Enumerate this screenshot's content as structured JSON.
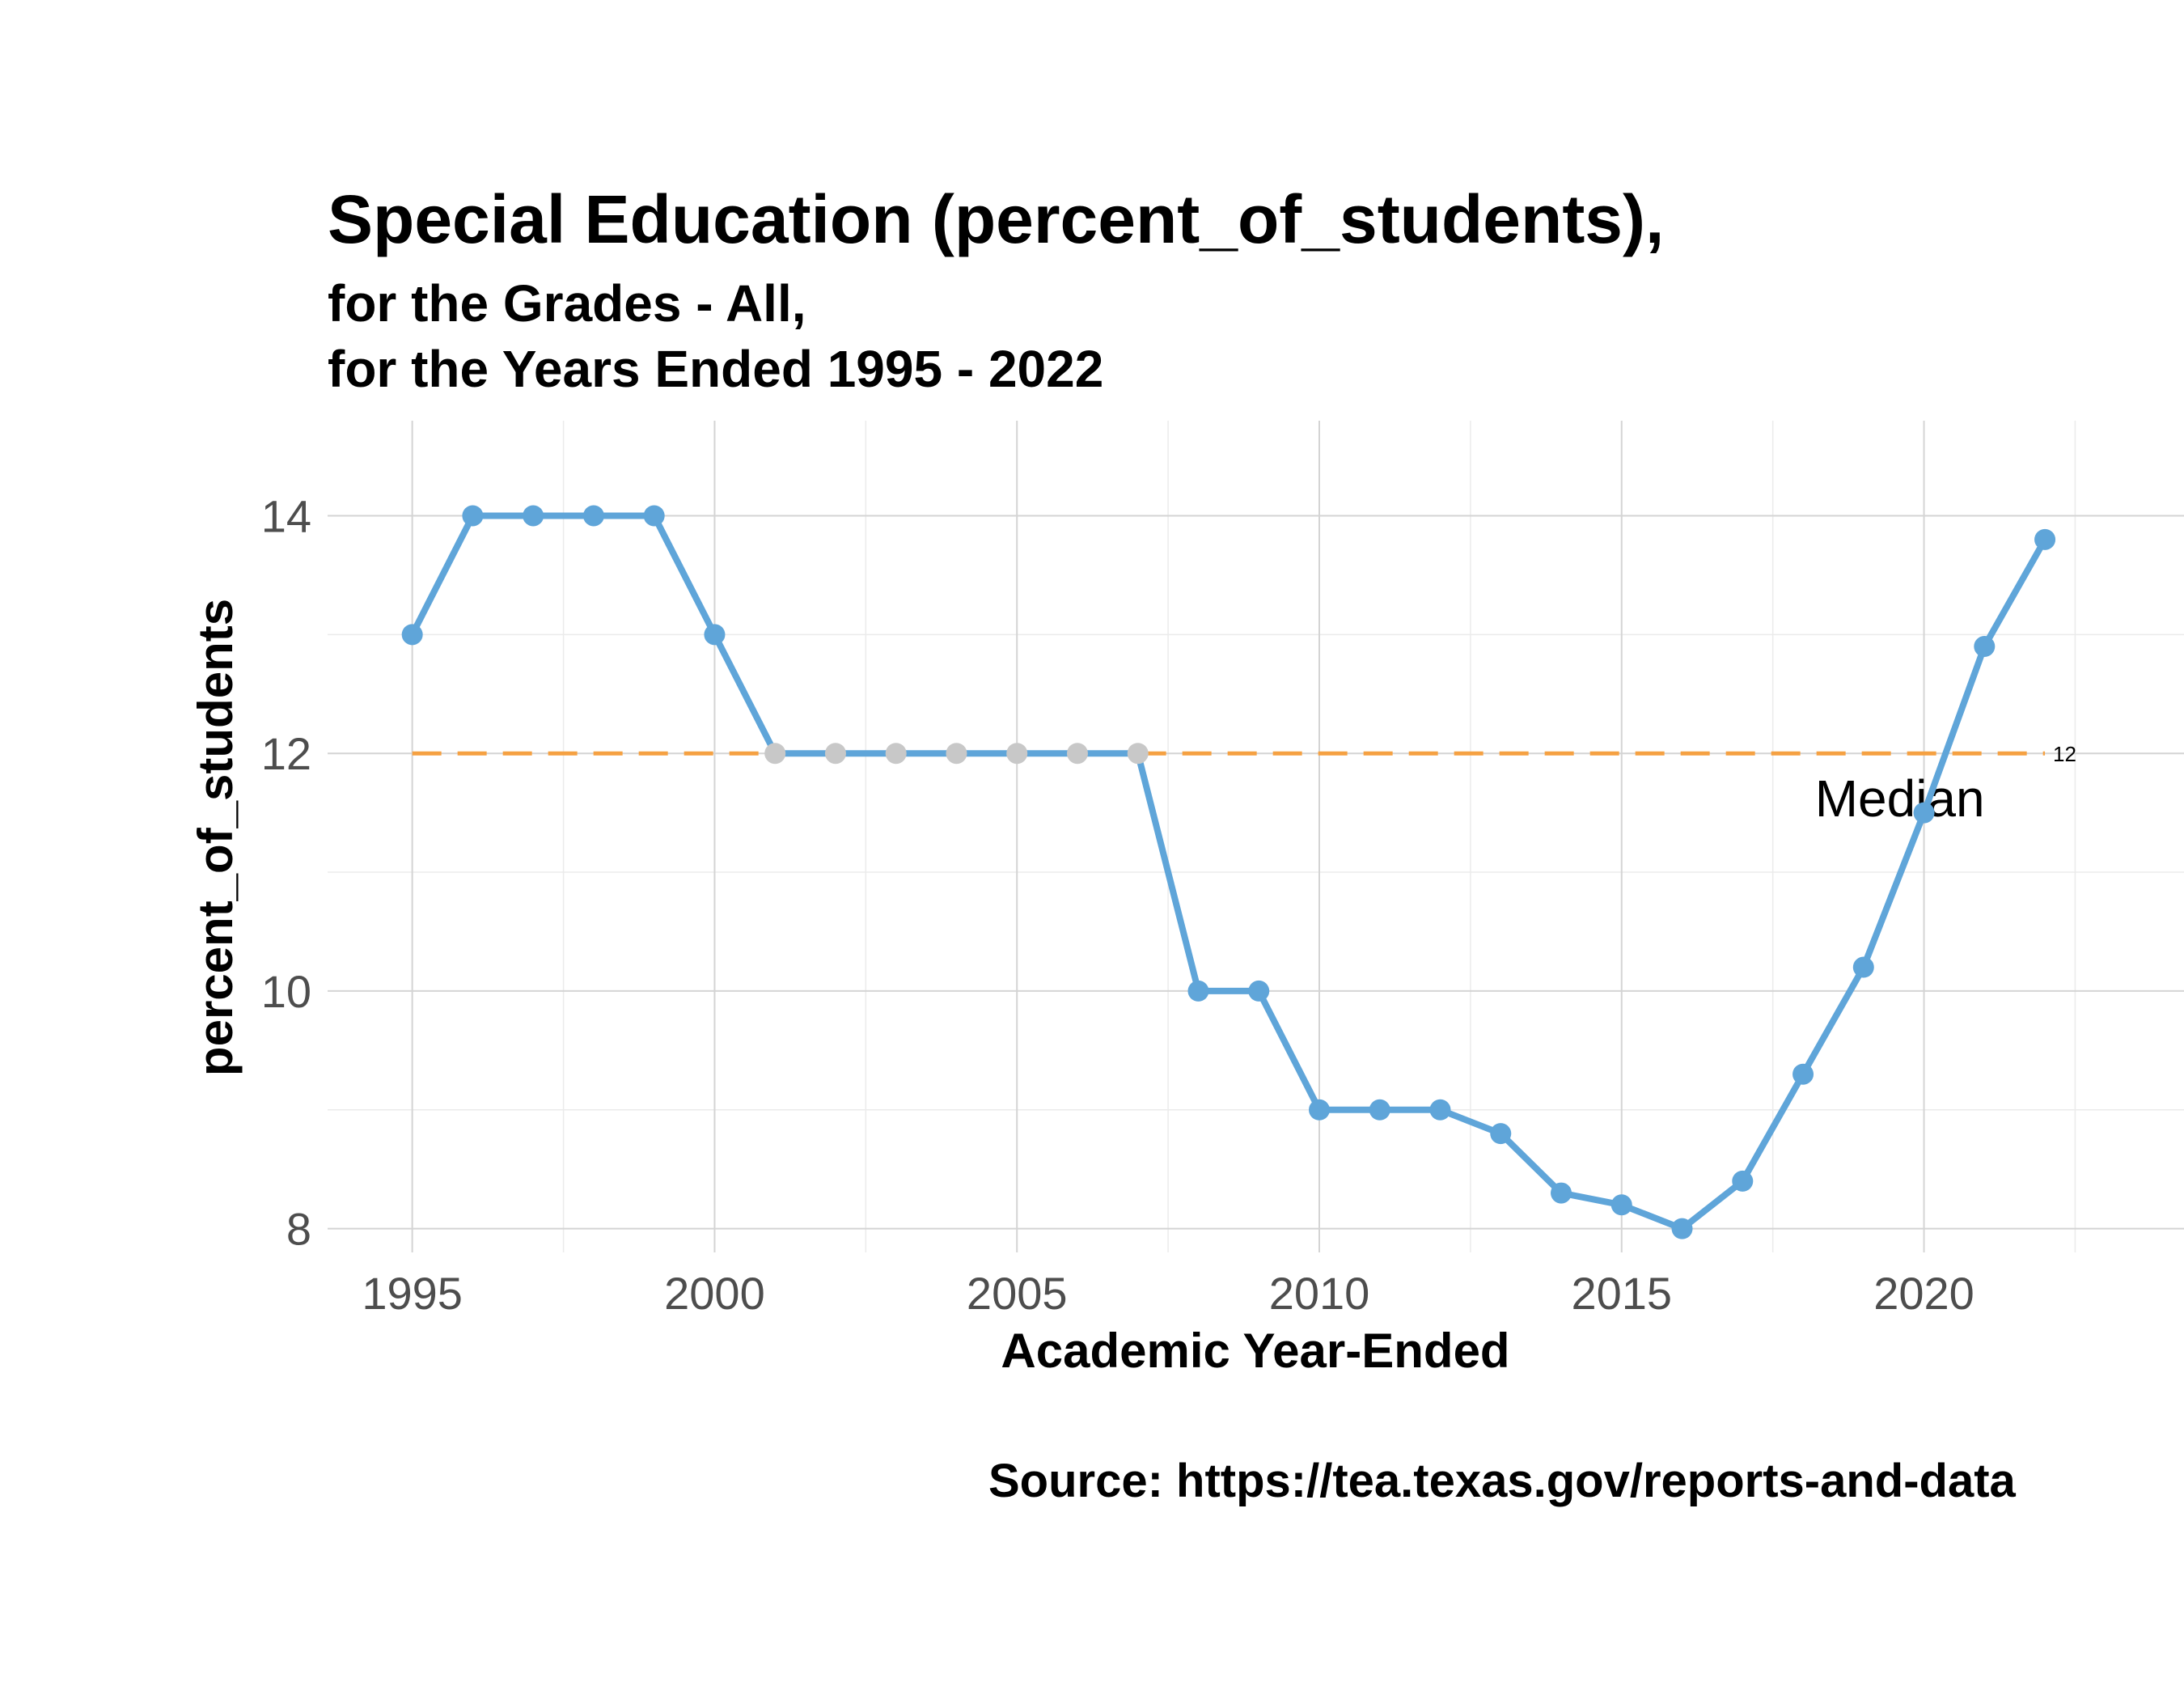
{
  "chart_data": {
    "type": "line",
    "title": "Special Education (percent_of_students),",
    "subtitle_lines": [
      "for the Grades - All,",
      "for the Years Ended 1995  -  2022"
    ],
    "xlabel": "Academic Year-Ended",
    "ylabel": "percent_of_students",
    "caption": "Source:  https://tea.texas.gov/reports-and-data",
    "xlim": [
      1993.6,
      2024.3
    ],
    "ylim": [
      7.8,
      14.8
    ],
    "x_ticks": [
      1995,
      2000,
      2005,
      2010,
      2015,
      2020
    ],
    "y_ticks": [
      8,
      10,
      12,
      14
    ],
    "grid": true,
    "series": [
      {
        "color": "#5fa5d9",
        "x": [
          1995,
          1996,
          1997,
          1998,
          1999,
          2000,
          2001,
          2002,
          2003,
          2004,
          2005,
          2006,
          2007,
          2008,
          2009,
          2010,
          2011,
          2012,
          2013,
          2014,
          2015,
          2016,
          2017,
          2018,
          2019,
          2020,
          2021,
          2022
        ],
        "y": [
          13,
          14,
          14,
          14,
          14,
          13,
          12,
          12,
          12,
          12,
          12,
          12,
          12,
          10,
          10,
          9,
          9,
          9,
          8.8,
          8.3,
          8.2,
          8.0,
          8.4,
          9.3,
          10.2,
          11.5,
          12.9,
          13.8
        ],
        "point_colors": [
          "#5fa5d9",
          "#5fa5d9",
          "#5fa5d9",
          "#5fa5d9",
          "#5fa5d9",
          "#5fa5d9",
          "#c8c8c8",
          "#c8c8c8",
          "#c8c8c8",
          "#c8c8c8",
          "#c8c8c8",
          "#c8c8c8",
          "#c8c8c8",
          "#5fa5d9",
          "#5fa5d9",
          "#5fa5d9",
          "#5fa5d9",
          "#5fa5d9",
          "#5fa5d9",
          "#5fa5d9",
          "#5fa5d9",
          "#5fa5d9",
          "#5fa5d9",
          "#5fa5d9",
          "#5fa5d9",
          "#5fa5d9",
          "#5fa5d9",
          "#5fa5d9"
        ]
      }
    ],
    "median": {
      "value": 12,
      "value_label": "12",
      "label": "Median",
      "color": "#f5a142",
      "x_range": [
        1995,
        2022
      ]
    }
  }
}
